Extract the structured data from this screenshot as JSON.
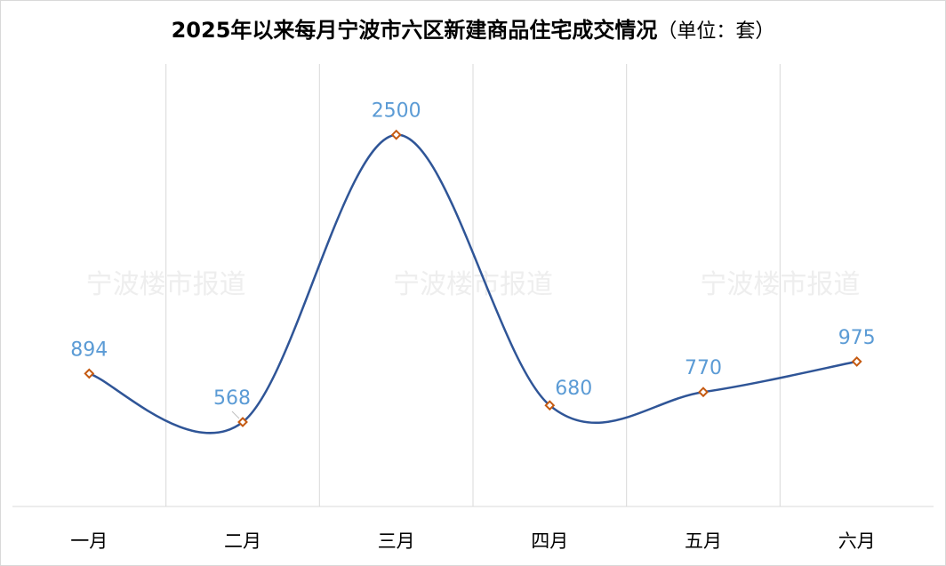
{
  "chart_data": {
    "type": "line",
    "title": "2025年以来每月宁波市六区新建商品住宅成交情况",
    "unit_note": "（单位：套）",
    "categories": [
      "一月",
      "二月",
      "三月",
      "四月",
      "五月",
      "六月"
    ],
    "series": [
      {
        "values": [
          894,
          568,
          2500,
          680,
          770,
          975
        ]
      }
    ],
    "ylim": [
      0,
      3000
    ],
    "smooth": true,
    "grid": "vertical",
    "legend": "none",
    "watermark": "宁波楼市报道",
    "colors": {
      "line": "#2f5597",
      "marker_stroke": "#c55a11",
      "marker_fill": "#ffffff",
      "data_label": "#5b9bd5",
      "grid": "#d9d9d9",
      "watermark": "#eeeeee"
    }
  }
}
